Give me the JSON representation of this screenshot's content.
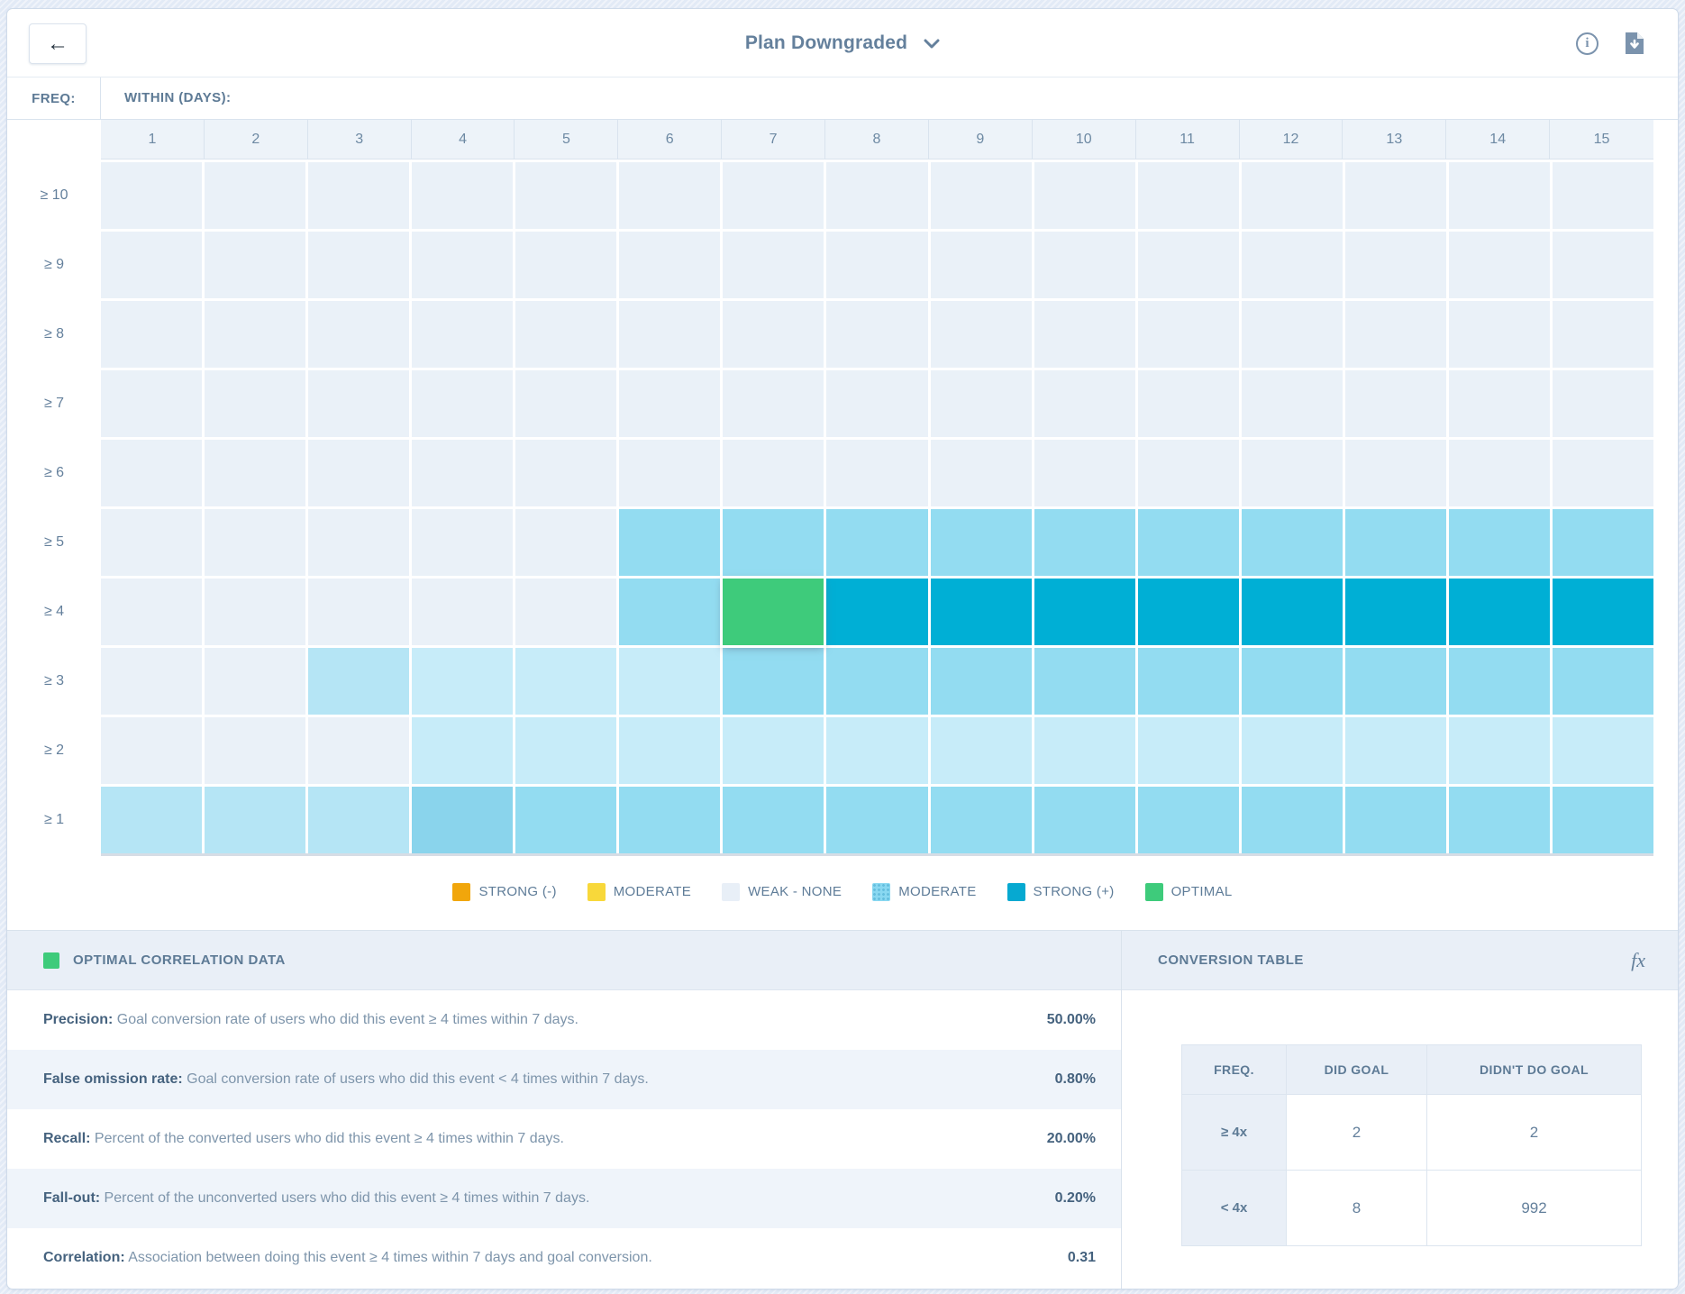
{
  "header": {
    "back_glyph": "←",
    "title": "Plan Downgraded"
  },
  "heatmap": {
    "freq_label": "FREQ:",
    "within_label": "WITHIN (DAYS):",
    "columns": [
      "1",
      "2",
      "3",
      "4",
      "5",
      "6",
      "7",
      "8",
      "9",
      "10",
      "11",
      "12",
      "13",
      "14",
      "15"
    ],
    "row_labels": [
      "≥ 10",
      "≥ 9",
      "≥ 8",
      "≥ 7",
      "≥ 6",
      "≥ 5",
      "≥ 4",
      "≥ 3",
      "≥ 2",
      "≥ 1"
    ],
    "palette": {
      "w": "#eaf1f8",
      "p1": "#c7ecf9",
      "p2": "#b5e5f5",
      "m": "#93dcf1",
      "m2": "#8ad4ec",
      "s": "#00afd5",
      "o": "#3ecb7b"
    },
    "cells": [
      [
        "w",
        "w",
        "w",
        "w",
        "w",
        "w",
        "w",
        "w",
        "w",
        "w",
        "w",
        "w",
        "w",
        "w",
        "w"
      ],
      [
        "w",
        "w",
        "w",
        "w",
        "w",
        "w",
        "w",
        "w",
        "w",
        "w",
        "w",
        "w",
        "w",
        "w",
        "w"
      ],
      [
        "w",
        "w",
        "w",
        "w",
        "w",
        "w",
        "w",
        "w",
        "w",
        "w",
        "w",
        "w",
        "w",
        "w",
        "w"
      ],
      [
        "w",
        "w",
        "w",
        "w",
        "w",
        "w",
        "w",
        "w",
        "w",
        "w",
        "w",
        "w",
        "w",
        "w",
        "w"
      ],
      [
        "w",
        "w",
        "w",
        "w",
        "w",
        "w",
        "w",
        "w",
        "w",
        "w",
        "w",
        "w",
        "w",
        "w",
        "w"
      ],
      [
        "w",
        "w",
        "w",
        "w",
        "w",
        "m",
        "m",
        "m",
        "m",
        "m",
        "m",
        "m",
        "m",
        "m",
        "m"
      ],
      [
        "w",
        "w",
        "w",
        "w",
        "w",
        "m",
        "o",
        "s",
        "s",
        "s",
        "s",
        "s",
        "s",
        "s",
        "s"
      ],
      [
        "w",
        "w",
        "p2",
        "p1",
        "p1",
        "p1",
        "m",
        "m",
        "m",
        "m",
        "m",
        "m",
        "m",
        "m",
        "m"
      ],
      [
        "w",
        "w",
        "w",
        "p1",
        "p1",
        "p1",
        "p1",
        "p1",
        "p1",
        "p1",
        "p1",
        "p1",
        "p1",
        "p1",
        "p1"
      ],
      [
        "p2",
        "p2",
        "p2",
        "m2",
        "m",
        "m",
        "m",
        "m",
        "m",
        "m",
        "m",
        "m",
        "m",
        "m",
        "m"
      ]
    ],
    "optimal_cell": {
      "row": 6,
      "col": 6
    }
  },
  "legend": {
    "items": [
      {
        "label": "STRONG (-)",
        "color": "#f1a60b",
        "dotted": false
      },
      {
        "label": "MODERATE",
        "color": "#f8d83a",
        "dotted": false
      },
      {
        "label": "WEAK - NONE",
        "color": "#e8eff7",
        "dotted": false
      },
      {
        "label": "MODERATE",
        "color": "#89d8f1",
        "dotted": true
      },
      {
        "label": "STRONG (+)",
        "color": "#06a9d1",
        "dotted": false
      },
      {
        "label": "OPTIMAL",
        "color": "#3ecb7b",
        "dotted": false
      }
    ]
  },
  "optimal_panel": {
    "title": "OPTIMAL CORRELATION DATA",
    "swatch_color": "#3ecb7b",
    "metrics": [
      {
        "label": "Precision:",
        "description": " Goal conversion rate of users who did this event ≥ 4 times within 7 days.",
        "value": "50.00%"
      },
      {
        "label": "False omission rate:",
        "description": " Goal conversion rate of users who did this event < 4 times within 7 days.",
        "value": "0.80%"
      },
      {
        "label": "Recall:",
        "description": " Percent of the converted users who did this event ≥ 4 times within 7 days.",
        "value": "20.00%"
      },
      {
        "label": "Fall-out:",
        "description": " Percent of the unconverted users who did this event ≥ 4 times within 7 days.",
        "value": "0.20%"
      },
      {
        "label": "Correlation:",
        "description": " Association between doing this event ≥ 4 times within 7 days and goal conversion.",
        "value": "0.31"
      }
    ]
  },
  "conversion_panel": {
    "title": "CONVERSION TABLE",
    "fx_label": "fx",
    "table": {
      "headers": [
        "FREQ.",
        "DID GOAL",
        "DIDN'T DO GOAL"
      ],
      "rows": [
        {
          "freq": "≥ 4x",
          "did": "2",
          "didnt": "2"
        },
        {
          "freq": "< 4x",
          "did": "8",
          "didnt": "992"
        }
      ]
    }
  }
}
